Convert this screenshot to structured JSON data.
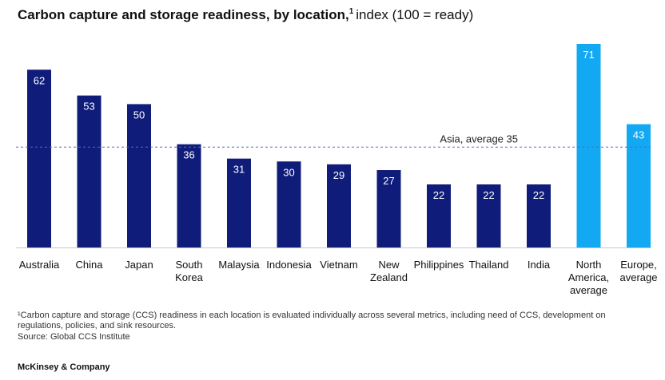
{
  "header": {
    "title_bold": "Carbon capture and storage readiness, by location,",
    "title_footnote_mark": "1",
    "title_rest": "index (100 = ready)"
  },
  "chart_data": {
    "type": "bar",
    "title": "Carbon capture and storage readiness, by location, index (100 = ready)",
    "categories": [
      [
        "Australia"
      ],
      [
        "China"
      ],
      [
        "Japan"
      ],
      [
        "South",
        "Korea"
      ],
      [
        "Malaysia"
      ],
      [
        "Indonesia"
      ],
      [
        "Vietnam"
      ],
      [
        "New",
        "Zealand"
      ],
      [
        "Philippines"
      ],
      [
        "Thailand"
      ],
      [
        "India"
      ],
      [
        "North",
        "America,",
        "average"
      ],
      [
        "Europe,",
        "average"
      ]
    ],
    "values": [
      62,
      53,
      50,
      36,
      31,
      30,
      29,
      27,
      22,
      22,
      22,
      71,
      43
    ],
    "bar_colors": [
      "#0f1c7a",
      "#0f1c7a",
      "#0f1c7a",
      "#0f1c7a",
      "#0f1c7a",
      "#0f1c7a",
      "#0f1c7a",
      "#0f1c7a",
      "#0f1c7a",
      "#0f1c7a",
      "#0f1c7a",
      "#12a8f2",
      "#12a8f2"
    ],
    "reference_line": {
      "value": 35,
      "label": "Asia, average 35",
      "color": "#5a6aa8"
    },
    "ylim": [
      0,
      71
    ],
    "xlabel": "",
    "ylabel": "",
    "grid": false
  },
  "footer": {
    "footnote": "¹Carbon capture and storage (CCS) readiness in each location is evaluated individually across several metrics, including need of CCS, development on regulations, policies, and sink resources.",
    "source": "Source: Global CCS Institute",
    "brand": "McKinsey & Company"
  }
}
